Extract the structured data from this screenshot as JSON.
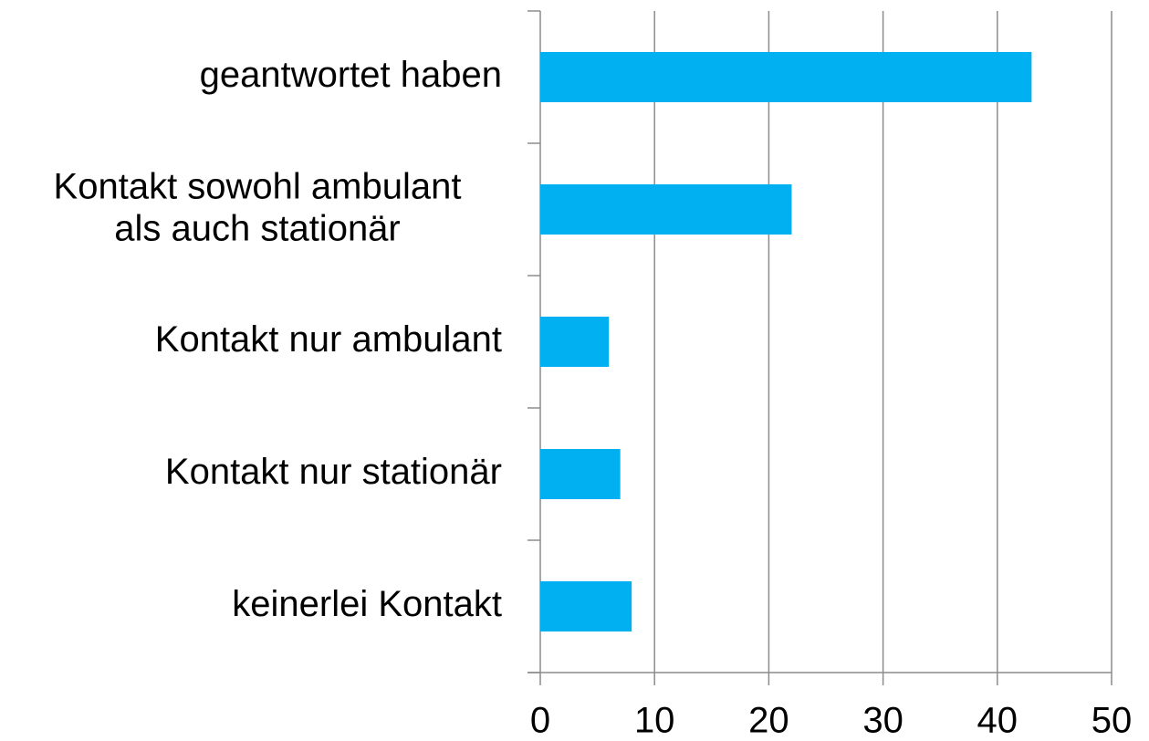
{
  "chart_data": {
    "type": "barh",
    "categories": [
      "geantwortet haben",
      "Kontakt sowohl ambulant\nals auch stationär",
      "Kontakt nur ambulant",
      "Kontakt nur stationär",
      "keinerlei Kontakt"
    ],
    "values": [
      43,
      22,
      6,
      7,
      8
    ],
    "color": "#00b0f0",
    "xlim": [
      0,
      50
    ],
    "xticks": [
      0,
      10,
      20,
      30,
      40,
      50
    ],
    "grid": true
  }
}
